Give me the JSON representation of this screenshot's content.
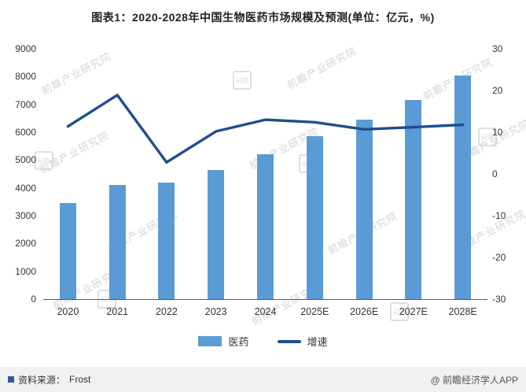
{
  "chart_data": {
    "type": "bar+line",
    "title": "图表1：2020-2028年中国生物医药市场规模及预测(单位：亿元，%)",
    "categories": [
      "2020",
      "2021",
      "2022",
      "2023",
      "2024",
      "2025E",
      "2026E",
      "2027E",
      "2028E"
    ],
    "series": [
      {
        "name": "医药",
        "type": "bar",
        "axis": "left",
        "color": "#5B9BD5",
        "values": [
          3450,
          4100,
          4200,
          4630,
          5200,
          5870,
          6450,
          7150,
          8030
        ]
      },
      {
        "name": "增速",
        "type": "line",
        "axis": "right",
        "color": "#1F4E8C",
        "values": [
          11.4,
          18.9,
          2.8,
          10.2,
          13.0,
          12.4,
          10.7,
          11.2,
          11.8
        ]
      }
    ],
    "left_axis": {
      "min": 0,
      "max": 9000,
      "ticks": [
        9000,
        8000,
        7000,
        6000,
        5000,
        4000,
        3000,
        2000,
        1000,
        0
      ]
    },
    "right_axis": {
      "min": -30,
      "max": 30,
      "ticks": [
        30,
        20,
        10,
        0,
        -10,
        -20,
        -30
      ]
    },
    "legend_position": "bottom",
    "grid": false
  },
  "watermark": {
    "text": "前瞻产业研究院",
    "logo_text": "前瞻"
  },
  "footer": {
    "source_label": "资料来源：",
    "source_value": "Frost",
    "credit": "@ 前瞻经济学人APP",
    "bullet_color": "#2E5A9C"
  }
}
